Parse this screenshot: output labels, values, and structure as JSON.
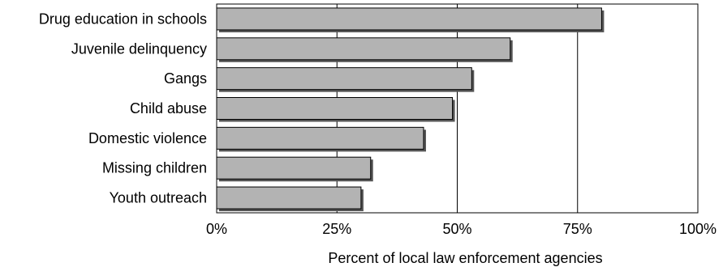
{
  "chart_data": {
    "type": "bar",
    "orientation": "horizontal",
    "categories": [
      "Drug education in schools",
      "Juvenile delinquency",
      "Gangs",
      "Child abuse",
      "Domestic violence",
      "Missing children",
      "Youth outreach"
    ],
    "values": [
      80,
      61,
      53,
      49,
      43,
      32,
      30
    ],
    "unit": "%",
    "xlabel": "Percent of local law enforcement agencies",
    "ylabel": "",
    "title": "",
    "xlim": [
      0,
      100
    ],
    "xticks": [
      0,
      25,
      50,
      75,
      100
    ],
    "xtick_labels": [
      "0%",
      "25%",
      "50%",
      "75%",
      "100%"
    ],
    "grid": "vertical",
    "legend": "none",
    "colors": {
      "bar_fill": "#b3b3b3",
      "bar_stroke": "#000000",
      "bar_shadow": "#555555",
      "grid": "#000000",
      "frame": "#000000"
    }
  }
}
